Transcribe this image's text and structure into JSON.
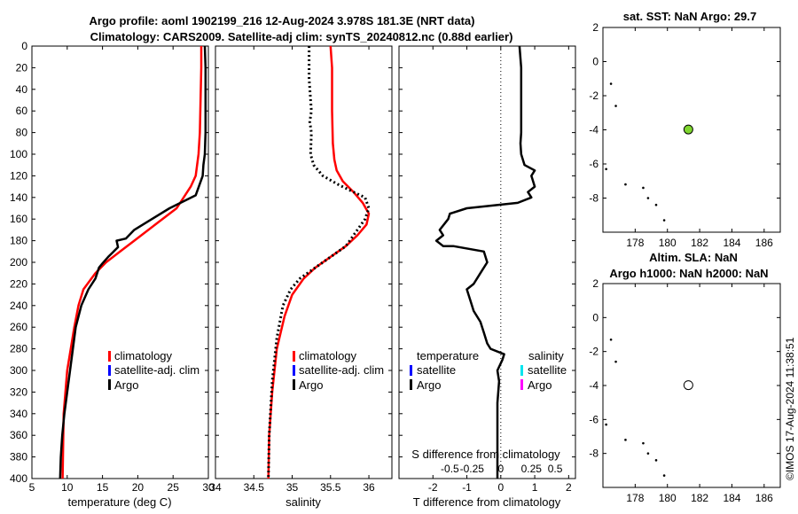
{
  "figure": {
    "title_line1": "Argo profile: aoml 1902199_216 12-Aug-2024 3.978S 181.3E (NRT data)",
    "title_line2": "Climatology: CARS2009. Satellite-adj clim: synTS_20240812.nc (0.88d earlier)",
    "timestamp": "©IMOS 17-Aug-2024 11:38:51"
  },
  "colors": {
    "climatology": "#ff0000",
    "satellite_adj": "#0000ff",
    "argo": "#000000",
    "sat_salinity": "#00e5ee",
    "argo_salinity": "#ff00ff",
    "sst_marker": "#7fd62f"
  },
  "chart_data": [
    {
      "type": "line",
      "name": "temperature",
      "xlabel": "temperature (deg C)",
      "ylabel": "",
      "xlim": [
        5,
        30
      ],
      "ylim": [
        0,
        400
      ],
      "y_reversed": true,
      "xticks": [
        "5",
        "10",
        "15",
        "20",
        "25",
        "30"
      ],
      "yticks": [
        "0",
        "20",
        "40",
        "60",
        "80",
        "100",
        "120",
        "140",
        "160",
        "180",
        "200",
        "220",
        "240",
        "260",
        "280",
        "300",
        "320",
        "340",
        "360",
        "380",
        "400"
      ],
      "legend": [
        "climatology",
        "satellite-adj. clim",
        "Argo"
      ],
      "series": [
        {
          "name": "climatology",
          "x": [
            29.0,
            29.0,
            28.9,
            28.8,
            28.6,
            28.2,
            27.5,
            25.5,
            22.5,
            19.5,
            17.5,
            15.5,
            14.0,
            12.3,
            11.6,
            11.0,
            10.5,
            10.0,
            9.5,
            9.4,
            9.35
          ],
          "y": [
            0,
            20,
            50,
            80,
            100,
            120,
            130,
            150,
            165,
            180,
            190,
            200,
            210,
            225,
            240,
            260,
            280,
            300,
            340,
            380,
            400
          ]
        },
        {
          "name": "Argo",
          "x": [
            29.5,
            29.6,
            29.6,
            29.6,
            29.5,
            29.3,
            29.2,
            28.2,
            24.5,
            22.0,
            19.5,
            18.3,
            17.0,
            17.2,
            15.8,
            15.0,
            14.5,
            14.0,
            13.0,
            12.0,
            11.2,
            10.6,
            10.0,
            9.6,
            9.3,
            9.1,
            9.0
          ],
          "y": [
            0,
            20,
            50,
            80,
            100,
            110,
            120,
            138,
            150,
            160,
            170,
            178,
            180,
            186,
            195,
            201,
            205,
            215,
            225,
            240,
            260,
            290,
            320,
            340,
            360,
            380,
            400
          ]
        }
      ]
    },
    {
      "type": "line",
      "name": "salinity",
      "xlabel": "salinity",
      "ylabel": "",
      "xlim": [
        34,
        36.3
      ],
      "ylim": [
        0,
        400
      ],
      "y_reversed": true,
      "xticks": [
        "34",
        "34.5",
        "35",
        "35.5",
        "36"
      ],
      "legend": [
        "climatology",
        "satellite-adj. clim",
        "Argo"
      ],
      "series": [
        {
          "name": "climatology",
          "x": [
            35.5,
            35.52,
            35.52,
            35.53,
            35.55,
            35.58,
            35.66,
            35.8,
            35.92,
            36.0,
            35.97,
            35.85,
            35.7,
            35.5,
            35.3,
            35.15,
            35.0,
            34.9,
            34.8,
            34.74,
            34.7,
            34.69
          ],
          "y": [
            0,
            20,
            60,
            90,
            105,
            115,
            125,
            135,
            145,
            155,
            165,
            175,
            185,
            195,
            205,
            215,
            230,
            250,
            280,
            320,
            360,
            400
          ]
        },
        {
          "name": "Argo",
          "x": [
            35.22,
            35.22,
            35.25,
            35.23,
            35.25,
            35.24,
            35.28,
            35.4,
            35.6,
            35.8,
            35.95,
            36.0,
            35.95,
            35.85,
            35.7,
            35.5,
            35.3,
            35.1,
            34.98,
            34.88,
            34.8,
            34.74,
            34.7,
            34.69
          ],
          "y": [
            0,
            30,
            60,
            70,
            80,
            100,
            110,
            120,
            128,
            135,
            140,
            150,
            160,
            170,
            185,
            195,
            205,
            215,
            225,
            240,
            270,
            310,
            360,
            400
          ]
        }
      ]
    },
    {
      "type": "line",
      "name": "difference_from_climatology",
      "xlabel": "T difference from climatology",
      "top_label": "S difference from climatology",
      "xlim": [
        -3,
        2.2
      ],
      "ylim": [
        0,
        400
      ],
      "y_reversed": true,
      "xticks": [
        "-2",
        "-1",
        "0",
        "1",
        "2"
      ],
      "top_ticks": [
        "-0.5",
        "-0.25",
        "0",
        "0.25",
        "0.5"
      ],
      "legend_titles": [
        "temperature",
        "salinity"
      ],
      "legend": [
        "satellite",
        "Argo",
        "satellite",
        "Argo"
      ],
      "series": [
        {
          "name": "temperature Argo",
          "x": [
            0.55,
            0.6,
            0.6,
            0.6,
            0.6,
            0.58,
            0.6,
            0.7,
            1.0,
            0.9,
            1.0,
            0.8,
            0.9,
            0.5,
            -1.0,
            -1.5,
            -1.55,
            -1.8,
            -1.7,
            -1.9,
            -1.7,
            -1.4,
            -0.5,
            -0.4,
            -0.6,
            -0.8,
            -1.0,
            -0.9,
            -0.8,
            -0.6,
            -0.5,
            -0.4,
            -0.3,
            0.1,
            0.05,
            -0.1,
            -0.05,
            -0.1,
            -0.1,
            -0.1,
            -0.1
          ],
          "y": [
            0,
            20,
            40,
            60,
            80,
            90,
            100,
            110,
            115,
            120,
            130,
            135,
            140,
            145,
            150,
            155,
            160,
            170,
            175,
            180,
            185,
            185,
            190,
            200,
            210,
            220,
            225,
            235,
            245,
            255,
            265,
            275,
            280,
            285,
            290,
            300,
            310,
            330,
            350,
            380,
            400
          ]
        }
      ]
    },
    {
      "type": "scatter",
      "name": "sat_sst_map",
      "title": "sat. SST: NaN Argo: 29.7",
      "xlim": [
        176,
        187
      ],
      "ylim": [
        -10,
        2
      ],
      "xticks": [
        "178",
        "180",
        "182",
        "184",
        "186"
      ],
      "yticks": [
        "2",
        "0",
        "-2",
        "-4",
        "-6",
        "-8"
      ],
      "points": {
        "x": [
          176.5,
          176.8,
          176.2,
          177.4,
          178.5,
          178.8,
          179.3,
          179.8
        ],
        "y": [
          -1.3,
          -2.6,
          -6.3,
          -7.2,
          -7.4,
          -8.0,
          -8.4,
          -9.3
        ]
      },
      "float_position": {
        "x": 181.3,
        "y": -3.98
      }
    },
    {
      "type": "scatter",
      "name": "altim_sla_map",
      "title_line1": "Altim. SLA: NaN",
      "title_line2": "Argo h1000: NaN h2000: NaN",
      "xlim": [
        176,
        187
      ],
      "ylim": [
        -10,
        2
      ],
      "xticks": [
        "178",
        "180",
        "182",
        "184",
        "186"
      ],
      "yticks": [
        "2",
        "0",
        "-2",
        "-4",
        "-6",
        "-8"
      ],
      "points": {
        "x": [
          176.5,
          176.8,
          176.2,
          177.4,
          178.5,
          178.8,
          179.3,
          179.8
        ],
        "y": [
          -1.3,
          -2.6,
          -6.3,
          -7.2,
          -7.4,
          -8.0,
          -8.4,
          -9.3
        ]
      },
      "float_position": {
        "x": 181.3,
        "y": -3.98
      }
    }
  ]
}
